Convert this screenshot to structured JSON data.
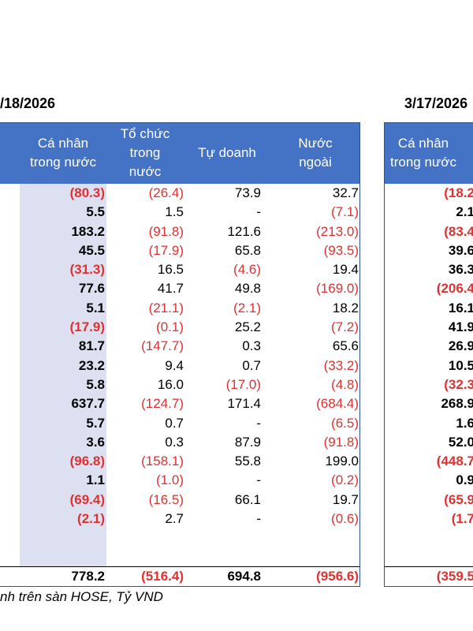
{
  "left": {
    "date": "/18/2026",
    "headers": [
      "Cá nhân\ntrong nước",
      "Tổ chức\ntrong\nnước",
      "Tự doanh",
      "Nước\nngoài"
    ],
    "rows": [
      [
        "(80.3)",
        "(26.4)",
        "73.9",
        "32.7"
      ],
      [
        "5.5",
        "1.5",
        "-",
        "(7.1)"
      ],
      [
        "183.2",
        "(91.8)",
        "121.6",
        "(213.0)"
      ],
      [
        "45.5",
        "(17.9)",
        "65.8",
        "(93.5)"
      ],
      [
        "(31.3)",
        "16.5",
        "(4.6)",
        "19.4"
      ],
      [
        "77.6",
        "41.7",
        "49.8",
        "(169.0)"
      ],
      [
        "5.1",
        "(21.1)",
        "(2.1)",
        "18.2"
      ],
      [
        "(17.9)",
        "(0.1)",
        "25.2",
        "(7.2)"
      ],
      [
        "81.7",
        "(147.7)",
        "0.3",
        "65.6"
      ],
      [
        "23.2",
        "9.4",
        "0.7",
        "(33.2)"
      ],
      [
        "5.8",
        "16.0",
        "(17.0)",
        "(4.8)"
      ],
      [
        "637.7",
        "(124.7)",
        "171.4",
        "(684.4)"
      ],
      [
        "5.7",
        "0.7",
        "-",
        "(6.5)"
      ],
      [
        "3.6",
        "0.3",
        "87.9",
        "(91.8)"
      ],
      [
        "(96.8)",
        "(158.1)",
        "55.8",
        "199.0"
      ],
      [
        "1.1",
        "(1.0)",
        "-",
        "(0.2)"
      ],
      [
        "(69.4)",
        "(16.5)",
        "66.1",
        "19.7"
      ],
      [
        "(2.1)",
        "2.7",
        "-",
        "(0.6)"
      ]
    ],
    "total": [
      "778.2",
      "(516.4)",
      "694.8",
      "(956.6)"
    ]
  },
  "right": {
    "date": "3/17/2026",
    "header": "Cá nhân\ntrong nước",
    "rows": [
      "(18.2",
      "2.1",
      "(83.4",
      "39.6",
      "36.3",
      "(206.4",
      "16.1",
      "41.9",
      "26.9",
      "10.5",
      "(32.3",
      "268.9",
      "1.6",
      "52.0",
      "(448.7",
      "0.9",
      "(65.9",
      "(1.7"
    ],
    "total": "(359.5"
  },
  "source": "nh trên sàn HOSE, Tỷ VND",
  "colors": {
    "header_bg": "#4472c4",
    "negative": "#e03030",
    "highlight": "#dce0f0"
  }
}
